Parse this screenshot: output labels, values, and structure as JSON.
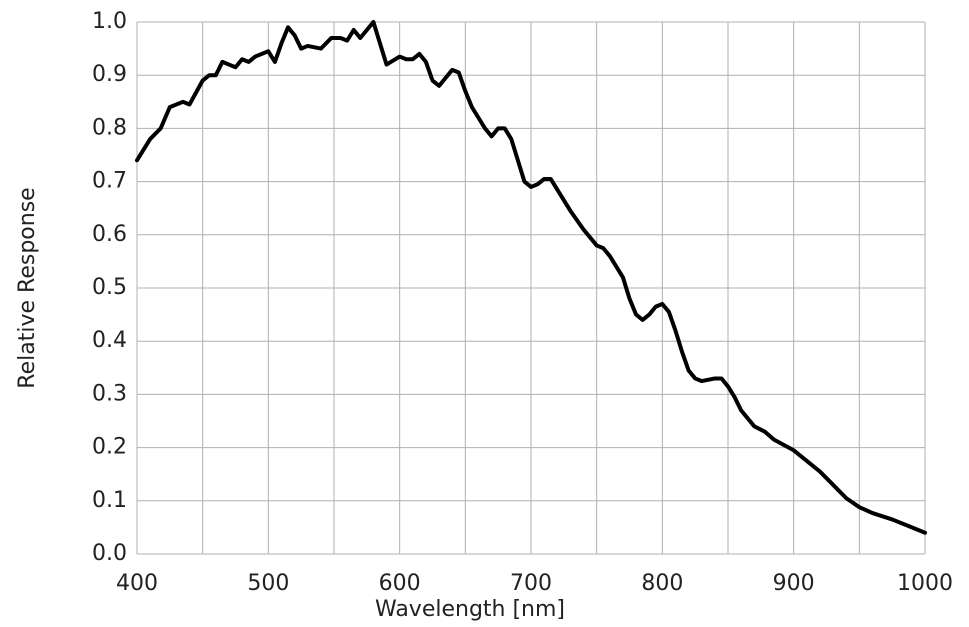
{
  "chart_data": {
    "type": "line",
    "x_label": "Wavelength [nm]",
    "y_label": "Relative Response",
    "x": [
      400,
      410,
      418,
      425,
      435,
      440,
      450,
      455,
      460,
      465,
      470,
      475,
      480,
      485,
      490,
      500,
      505,
      510,
      515,
      520,
      525,
      530,
      540,
      548,
      555,
      560,
      565,
      570,
      575,
      580,
      585,
      590,
      600,
      605,
      610,
      615,
      620,
      625,
      630,
      635,
      640,
      645,
      650,
      655,
      660,
      665,
      670,
      675,
      680,
      685,
      690,
      695,
      700,
      705,
      710,
      715,
      720,
      730,
      740,
      750,
      755,
      760,
      770,
      775,
      780,
      785,
      790,
      795,
      800,
      805,
      810,
      815,
      820,
      825,
      830,
      840,
      845,
      850,
      855,
      860,
      870,
      878,
      885,
      900,
      910,
      920,
      930,
      940,
      950,
      960,
      975,
      990,
      1000
    ],
    "series": [
      {
        "color": "#000000",
        "values": [
          0.74,
          0.78,
          0.8,
          0.84,
          0.85,
          0.845,
          0.89,
          0.9,
          0.9,
          0.925,
          0.92,
          0.915,
          0.93,
          0.925,
          0.935,
          0.945,
          0.925,
          0.96,
          0.99,
          0.975,
          0.95,
          0.955,
          0.95,
          0.97,
          0.97,
          0.965,
          0.985,
          0.97,
          0.985,
          1.0,
          0.96,
          0.92,
          0.935,
          0.93,
          0.93,
          0.94,
          0.925,
          0.89,
          0.88,
          0.895,
          0.91,
          0.905,
          0.87,
          0.84,
          0.82,
          0.8,
          0.785,
          0.8,
          0.8,
          0.78,
          0.74,
          0.7,
          0.69,
          0.695,
          0.705,
          0.705,
          0.685,
          0.645,
          0.61,
          0.58,
          0.575,
          0.56,
          0.52,
          0.48,
          0.45,
          0.44,
          0.45,
          0.465,
          0.47,
          0.455,
          0.42,
          0.38,
          0.345,
          0.33,
          0.325,
          0.33,
          0.33,
          0.315,
          0.295,
          0.27,
          0.24,
          0.23,
          0.215,
          0.195,
          0.175,
          0.155,
          0.13,
          0.105,
          0.088,
          0.077,
          0.065,
          0.05,
          0.04
        ]
      }
    ],
    "xlim": [
      400,
      1000
    ],
    "xticks": [
      400,
      500,
      600,
      700,
      800,
      900,
      1000
    ],
    "ylim": [
      0,
      1
    ],
    "yticks": [
      {
        "value": 0,
        "label": "0.0"
      },
      0.1,
      0.2,
      0.3,
      0.4,
      0.5,
      0.6,
      0.7,
      0.8,
      0.9,
      {
        "value": 1,
        "label": "1.0"
      }
    ],
    "xgrid_minor": 50,
    "grid": true
  }
}
